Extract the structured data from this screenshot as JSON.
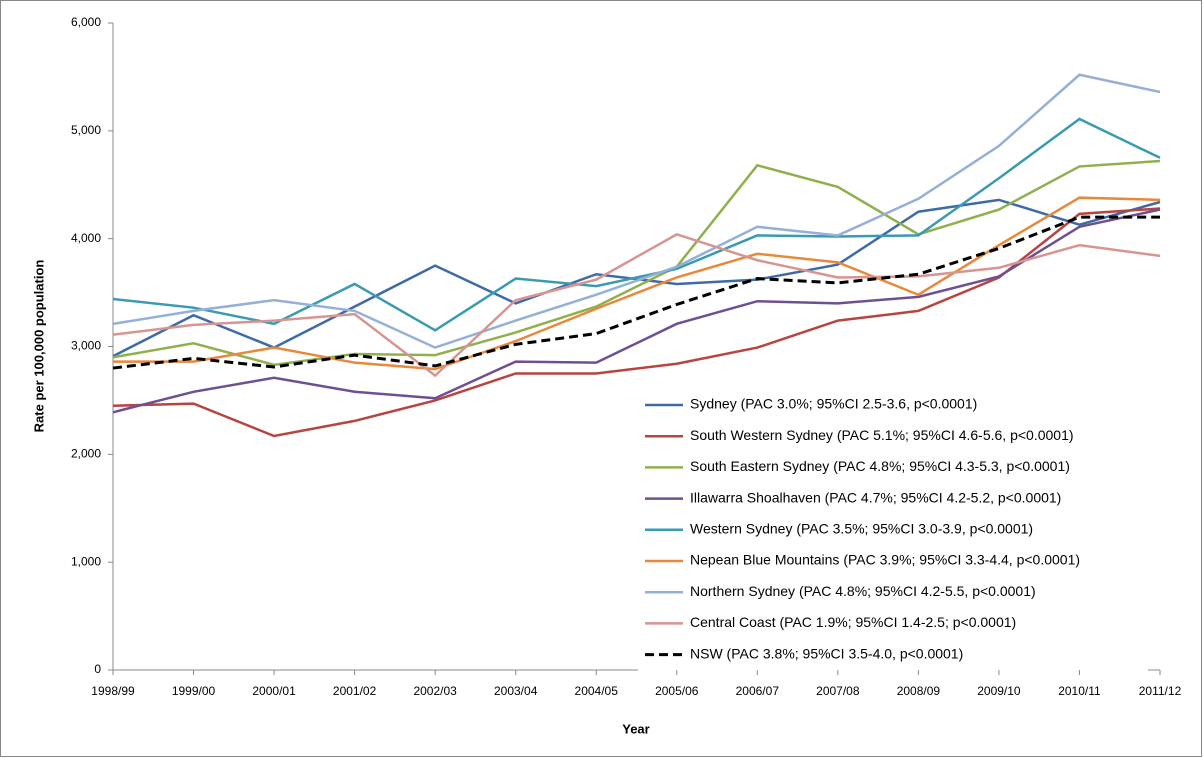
{
  "chart_data": {
    "type": "line",
    "x_label": "Year",
    "y_label": "Rate per 100,000 population",
    "categories": [
      "1998/99",
      "1999/00",
      "2000/01",
      "2001/02",
      "2002/03",
      "2003/04",
      "2004/05",
      "2005/06",
      "2006/07",
      "2007/08",
      "2008/09",
      "2009/10",
      "2010/11",
      "2011/12"
    ],
    "ylim": [
      0,
      6000
    ],
    "yticks": [
      0,
      {
        "value": 1000,
        "label": "1,000"
      },
      {
        "value": 2000,
        "label": "2,000"
      },
      {
        "value": 3000,
        "label": "3,000"
      },
      {
        "value": 4000,
        "label": "4,000"
      },
      {
        "value": 5000,
        "label": "5,000"
      },
      {
        "value": 6000,
        "label": "6,000"
      }
    ],
    "grid": false,
    "series": [
      {
        "name": "Sydney (PAC 3.0%; 95%CI 2.5-3.6, p<0.0001)",
        "color": "#3e6aa8",
        "values": [
          2910,
          3290,
          2990,
          3370,
          3750,
          3400,
          3670,
          3580,
          3620,
          3760,
          4250,
          4360,
          4130,
          4340
        ]
      },
      {
        "name": "South Western Sydney (PAC 5.1%; 95%CI 4.6-5.6, p<0.0001)",
        "color": "#b84440",
        "values": [
          2450,
          2470,
          2170,
          2310,
          2500,
          2750,
          2750,
          2840,
          2990,
          3240,
          3330,
          3640,
          4230,
          4280
        ]
      },
      {
        "name": "South Eastern Sydney (PAC 4.8%; 95%CI 4.3-5.3, p<0.0001)",
        "color": "#8fb04d",
        "values": [
          2900,
          3030,
          2830,
          2930,
          2920,
          3130,
          3370,
          3740,
          4680,
          4480,
          4040,
          4270,
          4670,
          4720
        ]
      },
      {
        "name": "Illawarra Shoalhaven (PAC 4.7%; 95%CI 4.2-5.2, p<0.0001)",
        "color": "#6f4f94",
        "values": [
          2390,
          2580,
          2710,
          2580,
          2520,
          2860,
          2850,
          3210,
          3420,
          3400,
          3460,
          3650,
          4110,
          4270
        ]
      },
      {
        "name": "Western Sydney (PAC 3.5%; 95%CI 3.0-3.9, p<0.0001)",
        "color": "#3a9ab0",
        "values": [
          3440,
          3360,
          3210,
          3580,
          3150,
          3630,
          3560,
          3720,
          4030,
          4020,
          4030,
          4560,
          5110,
          4750
        ]
      },
      {
        "name": "Nepean Blue Mountains (PAC 3.9%; 95%CI 3.3-4.4, p<0.0001)",
        "color": "#e8883a",
        "values": [
          2860,
          2860,
          2990,
          2850,
          2790,
          3050,
          3350,
          3640,
          3860,
          3780,
          3480,
          3940,
          4380,
          4360
        ]
      },
      {
        "name": "Northern Sydney (PAC 4.8%; 95%CI 4.2-5.5, p<0.0001)",
        "color": "#95b0d8",
        "values": [
          3210,
          3330,
          3430,
          3330,
          2990,
          3240,
          3480,
          3740,
          4110,
          4030,
          4370,
          4860,
          5520,
          5360
        ]
      },
      {
        "name": "Central Coast (PAC 1.9%; 95%CI 1.4-2.5; p<0.0001)",
        "color": "#d79592",
        "values": [
          3110,
          3200,
          3240,
          3300,
          2730,
          3430,
          3620,
          4040,
          3800,
          3640,
          3650,
          3730,
          3940,
          3840
        ]
      },
      {
        "name": "NSW (PAC 3.8%; 95%CI 3.5-4.0, p<0.0001)",
        "color": "#000000",
        "dashed": true,
        "values": [
          2800,
          2890,
          2810,
          2920,
          2820,
          3020,
          3120,
          3390,
          3630,
          3590,
          3670,
          3910,
          4200,
          4200
        ]
      }
    ]
  }
}
